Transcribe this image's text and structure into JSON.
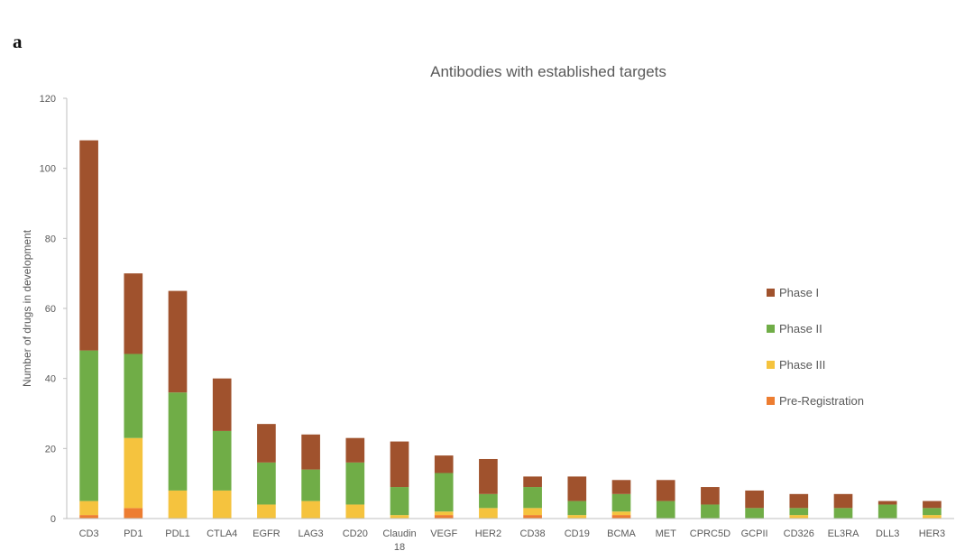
{
  "panel_label": "a",
  "chart_data": {
    "type": "bar",
    "stacked": true,
    "title": "Antibodies with established targets",
    "xlabel": "",
    "ylabel": "Number of drugs in development",
    "ylim": [
      0,
      120
    ],
    "yticks": [
      0,
      20,
      40,
      60,
      80,
      100,
      120
    ],
    "grid": false,
    "legend_position": "right",
    "categories": [
      "CD3",
      "PD1",
      "PDL1",
      "CTLA4",
      "EGFR",
      "LAG3",
      "CD20",
      "Claudin 18",
      "VEGF",
      "HER2",
      "CD38",
      "CD19",
      "BCMA",
      "MET",
      "CPRC5D",
      "GCPII",
      "CD326",
      "EL3RA",
      "DLL3",
      "HER3"
    ],
    "series": [
      {
        "name": "Pre-Registration",
        "color": "#ED7D31",
        "values": [
          1,
          3,
          0,
          0,
          0,
          0,
          0,
          0,
          1,
          0,
          1,
          0,
          1,
          0,
          0,
          0,
          0,
          0,
          0,
          0
        ]
      },
      {
        "name": "Phase III",
        "color": "#F5C33E",
        "values": [
          4,
          20,
          8,
          8,
          4,
          5,
          4,
          1,
          1,
          3,
          2,
          1,
          1,
          0,
          0,
          0,
          1,
          0,
          0,
          1
        ]
      },
      {
        "name": "Phase II",
        "color": "#70AD47",
        "values": [
          43,
          24,
          28,
          17,
          12,
          9,
          12,
          8,
          11,
          4,
          6,
          4,
          5,
          5,
          4,
          3,
          2,
          3,
          4,
          2
        ]
      },
      {
        "name": "Phase I",
        "color": "#A0522D",
        "values": [
          60,
          23,
          29,
          15,
          11,
          10,
          7,
          13,
          5,
          10,
          3,
          7,
          4,
          6,
          5,
          5,
          4,
          4,
          1,
          2
        ]
      }
    ],
    "legend_order": [
      "Phase I",
      "Phase II",
      "Phase III",
      "Pre-Registration"
    ]
  }
}
